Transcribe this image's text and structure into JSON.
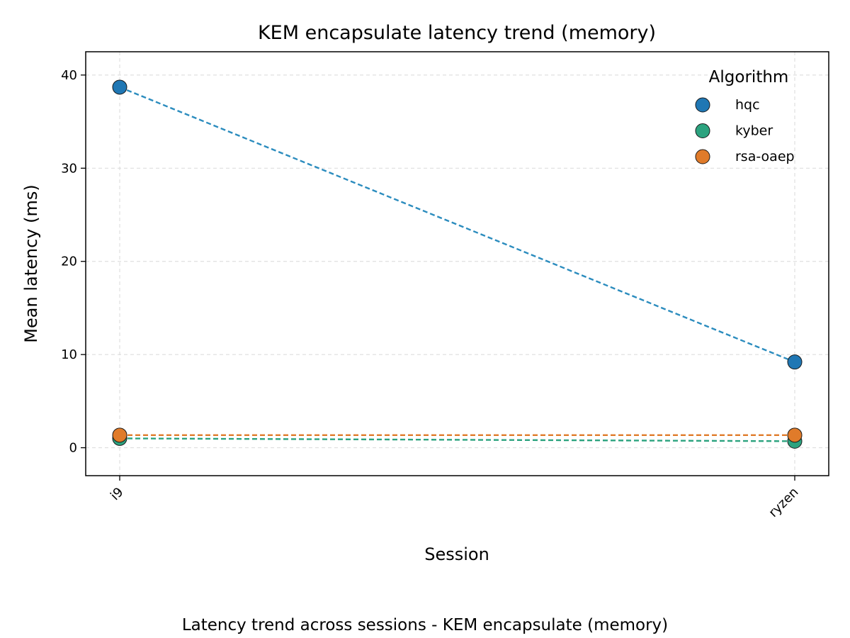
{
  "chart_data": {
    "type": "line",
    "title": "KEM encapsulate latency trend (memory)",
    "xlabel": "Session",
    "ylabel": "Mean latency (ms)",
    "caption": "Latency trend across sessions - KEM encapsulate (memory)",
    "categories": [
      "i9",
      "ryzen"
    ],
    "ylim": [
      -3,
      42.5
    ],
    "yticks": [
      0,
      10,
      20,
      30,
      40
    ],
    "grid": true,
    "legend": {
      "title": "Algorithm",
      "placement": "top-right"
    },
    "series": [
      {
        "name": "hqc",
        "values": [
          38.7,
          9.2
        ],
        "color": "#1f77b4",
        "line_color": "#2b8cbe"
      },
      {
        "name": "kyber",
        "values": [
          1.0,
          0.7
        ],
        "color": "#2ca37f",
        "line_color": "#2ca37f"
      },
      {
        "name": "rsa-oaep",
        "values": [
          1.35,
          1.35
        ],
        "color": "#e07b2a",
        "line_color": "#e07b2a"
      }
    ]
  }
}
